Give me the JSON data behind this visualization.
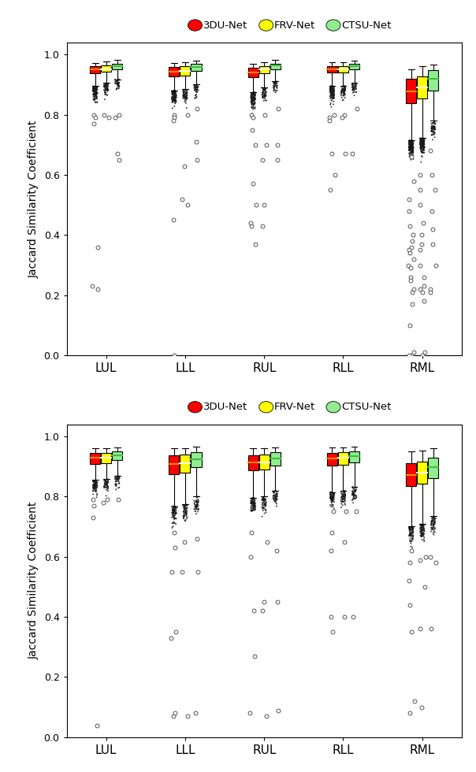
{
  "ylabel": "Jaccard Similarity Coefficient",
  "categories": [
    "LUL",
    "LLL",
    "RUL",
    "RLL",
    "RML"
  ],
  "legend_labels": [
    "3DU-Net",
    "FRV-Net",
    "CTSU-Net"
  ],
  "legend_colors": [
    "#FF0000",
    "#FFFF00",
    "#90EE90"
  ],
  "median_color": "#FF6600",
  "ylim": [
    0.0,
    1.04
  ],
  "yticks": [
    0.0,
    0.2,
    0.4,
    0.6,
    0.8,
    1.0
  ],
  "box_width": 0.13,
  "panel1": {
    "LUL": {
      "3DU-Net": {
        "q1": 0.938,
        "median": 0.95,
        "q3": 0.96,
        "whislo": 0.895,
        "whishi": 0.972,
        "cluster_mean": 0.883,
        "cluster_std": 0.018,
        "cluster_n": 120,
        "fliers": [
          0.8,
          0.79,
          0.77,
          0.36,
          0.23,
          0.22
        ]
      },
      "FRV-Net": {
        "q1": 0.942,
        "median": 0.952,
        "q3": 0.963,
        "whislo": 0.905,
        "whishi": 0.976,
        "cluster_mean": 0.892,
        "cluster_std": 0.014,
        "cluster_n": 60,
        "fliers": [
          0.8,
          0.79
        ]
      },
      "CTSU-Net": {
        "q1": 0.952,
        "median": 0.961,
        "q3": 0.969,
        "whislo": 0.918,
        "whishi": 0.981,
        "cluster_mean": 0.904,
        "cluster_std": 0.012,
        "cluster_n": 40,
        "fliers": [
          0.8,
          0.79,
          0.67,
          0.65
        ]
      }
    },
    "LLL": {
      "3DU-Net": {
        "q1": 0.928,
        "median": 0.943,
        "q3": 0.958,
        "whislo": 0.88,
        "whishi": 0.972,
        "cluster_mean": 0.868,
        "cluster_std": 0.018,
        "cluster_n": 120,
        "fliers": [
          0.8,
          0.79,
          0.78,
          0.45,
          0.0
        ]
      },
      "FRV-Net": {
        "q1": 0.93,
        "median": 0.946,
        "q3": 0.96,
        "whislo": 0.885,
        "whishi": 0.974,
        "cluster_mean": 0.873,
        "cluster_std": 0.016,
        "cluster_n": 60,
        "fliers": [
          0.8,
          0.63,
          0.52,
          0.5
        ]
      },
      "CTSU-Net": {
        "q1": 0.946,
        "median": 0.958,
        "q3": 0.968,
        "whislo": 0.9,
        "whishi": 0.979,
        "cluster_mean": 0.887,
        "cluster_std": 0.014,
        "cluster_n": 40,
        "fliers": [
          0.82,
          0.71,
          0.65
        ]
      }
    },
    "RUL": {
      "3DU-Net": {
        "q1": 0.925,
        "median": 0.94,
        "q3": 0.955,
        "whislo": 0.875,
        "whishi": 0.97,
        "cluster_mean": 0.862,
        "cluster_std": 0.02,
        "cluster_n": 120,
        "fliers": [
          0.8,
          0.79,
          0.75,
          0.7,
          0.57,
          0.5,
          0.44,
          0.43,
          0.37
        ]
      },
      "FRV-Net": {
        "q1": 0.938,
        "median": 0.95,
        "q3": 0.962,
        "whislo": 0.89,
        "whishi": 0.975,
        "cluster_mean": 0.876,
        "cluster_std": 0.016,
        "cluster_n": 60,
        "fliers": [
          0.8,
          0.7,
          0.65,
          0.5,
          0.43
        ]
      },
      "CTSU-Net": {
        "q1": 0.952,
        "median": 0.963,
        "q3": 0.97,
        "whislo": 0.912,
        "whishi": 0.981,
        "cluster_mean": 0.899,
        "cluster_std": 0.013,
        "cluster_n": 40,
        "fliers": [
          0.82,
          0.7,
          0.65
        ]
      }
    },
    "RLL": {
      "3DU-Net": {
        "q1": 0.94,
        "median": 0.951,
        "q3": 0.961,
        "whislo": 0.895,
        "whishi": 0.975,
        "cluster_mean": 0.882,
        "cluster_std": 0.017,
        "cluster_n": 120,
        "fliers": [
          0.8,
          0.79,
          0.78,
          0.67,
          0.6,
          0.55
        ]
      },
      "FRV-Net": {
        "q1": 0.94,
        "median": 0.952,
        "q3": 0.962,
        "whislo": 0.895,
        "whishi": 0.975,
        "cluster_mean": 0.883,
        "cluster_std": 0.016,
        "cluster_n": 60,
        "fliers": [
          0.8,
          0.79,
          0.67
        ]
      },
      "CTSU-Net": {
        "q1": 0.95,
        "median": 0.96,
        "q3": 0.968,
        "whislo": 0.906,
        "whishi": 0.979,
        "cluster_mean": 0.893,
        "cluster_std": 0.013,
        "cluster_n": 40,
        "fliers": [
          0.82,
          0.67
        ]
      }
    },
    "RML": {
      "3DU-Net": {
        "q1": 0.838,
        "median": 0.878,
        "q3": 0.92,
        "whislo": 0.715,
        "whishi": 0.95,
        "cluster_mean": 0.7,
        "cluster_std": 0.02,
        "cluster_n": 180,
        "fliers": [
          0.66,
          0.58,
          0.52,
          0.48,
          0.43,
          0.4,
          0.38,
          0.36,
          0.35,
          0.34,
          0.32,
          0.3,
          0.29,
          0.26,
          0.25,
          0.22,
          0.21,
          0.17,
          0.1,
          0.01,
          0.0,
          0.0
        ]
      },
      "FRV-Net": {
        "q1": 0.855,
        "median": 0.89,
        "q3": 0.927,
        "whislo": 0.722,
        "whishi": 0.96,
        "cluster_mean": 0.708,
        "cluster_std": 0.018,
        "cluster_n": 160,
        "fliers": [
          0.6,
          0.55,
          0.5,
          0.44,
          0.4,
          0.37,
          0.35,
          0.3,
          0.26,
          0.23,
          0.22,
          0.21,
          0.18,
          0.01,
          0.0
        ]
      },
      "CTSU-Net": {
        "q1": 0.88,
        "median": 0.92,
        "q3": 0.948,
        "whislo": 0.78,
        "whishi": 0.966,
        "cluster_mean": 0.755,
        "cluster_std": 0.016,
        "cluster_n": 60,
        "fliers": [
          0.68,
          0.6,
          0.55,
          0.48,
          0.42,
          0.37,
          0.3,
          0.22,
          0.21
        ]
      }
    }
  },
  "panel2": {
    "LUL": {
      "3DU-Net": {
        "q1": 0.908,
        "median": 0.928,
        "q3": 0.944,
        "whislo": 0.855,
        "whishi": 0.96,
        "cluster_mean": 0.84,
        "cluster_std": 0.015,
        "cluster_n": 80,
        "fliers": [
          0.79,
          0.77,
          0.73,
          0.04
        ]
      },
      "FRV-Net": {
        "q1": 0.911,
        "median": 0.93,
        "q3": 0.945,
        "whislo": 0.858,
        "whishi": 0.961,
        "cluster_mean": 0.843,
        "cluster_std": 0.014,
        "cluster_n": 50,
        "fliers": [
          0.79,
          0.78
        ]
      },
      "CTSU-Net": {
        "q1": 0.92,
        "median": 0.937,
        "q3": 0.95,
        "whislo": 0.868,
        "whishi": 0.963,
        "cluster_mean": 0.853,
        "cluster_std": 0.012,
        "cluster_n": 40,
        "fliers": [
          0.79
        ]
      }
    },
    "LLL": {
      "3DU-Net": {
        "q1": 0.875,
        "median": 0.908,
        "q3": 0.938,
        "whislo": 0.768,
        "whishi": 0.96,
        "cluster_mean": 0.75,
        "cluster_std": 0.02,
        "cluster_n": 80,
        "fliers": [
          0.68,
          0.63,
          0.55,
          0.35,
          0.33,
          0.07,
          0.08
        ]
      },
      "FRV-Net": {
        "q1": 0.88,
        "median": 0.91,
        "q3": 0.94,
        "whislo": 0.775,
        "whishi": 0.961,
        "cluster_mean": 0.755,
        "cluster_std": 0.018,
        "cluster_n": 60,
        "fliers": [
          0.65,
          0.55,
          0.07
        ]
      },
      "CTSU-Net": {
        "q1": 0.898,
        "median": 0.923,
        "q3": 0.947,
        "whislo": 0.8,
        "whishi": 0.965,
        "cluster_mean": 0.777,
        "cluster_std": 0.016,
        "cluster_n": 50,
        "fliers": [
          0.66,
          0.55,
          0.08
        ]
      }
    },
    "RUL": {
      "3DU-Net": {
        "q1": 0.888,
        "median": 0.913,
        "q3": 0.938,
        "whislo": 0.795,
        "whishi": 0.96,
        "cluster_mean": 0.778,
        "cluster_std": 0.018,
        "cluster_n": 80,
        "fliers": [
          0.68,
          0.6,
          0.42,
          0.27,
          0.08
        ]
      },
      "FRV-Net": {
        "q1": 0.89,
        "median": 0.914,
        "q3": 0.939,
        "whislo": 0.8,
        "whishi": 0.961,
        "cluster_mean": 0.78,
        "cluster_std": 0.017,
        "cluster_n": 60,
        "fliers": [
          0.65,
          0.45,
          0.42,
          0.07
        ]
      },
      "CTSU-Net": {
        "q1": 0.903,
        "median": 0.927,
        "q3": 0.947,
        "whislo": 0.82,
        "whishi": 0.963,
        "cluster_mean": 0.798,
        "cluster_std": 0.015,
        "cluster_n": 50,
        "fliers": [
          0.62,
          0.45,
          0.09
        ]
      }
    },
    "RLL": {
      "3DU-Net": {
        "q1": 0.903,
        "median": 0.926,
        "q3": 0.946,
        "whislo": 0.815,
        "whishi": 0.962,
        "cluster_mean": 0.798,
        "cluster_std": 0.017,
        "cluster_n": 80,
        "fliers": [
          0.75,
          0.68,
          0.62,
          0.4,
          0.35
        ]
      },
      "FRV-Net": {
        "q1": 0.905,
        "median": 0.928,
        "q3": 0.948,
        "whislo": 0.82,
        "whishi": 0.963,
        "cluster_mean": 0.803,
        "cluster_std": 0.016,
        "cluster_n": 60,
        "fliers": [
          0.75,
          0.65,
          0.4
        ]
      },
      "CTSU-Net": {
        "q1": 0.913,
        "median": 0.933,
        "q3": 0.951,
        "whislo": 0.832,
        "whishi": 0.965,
        "cluster_mean": 0.812,
        "cluster_std": 0.014,
        "cluster_n": 50,
        "fliers": [
          0.75,
          0.4
        ]
      }
    },
    "RML": {
      "3DU-Net": {
        "q1": 0.835,
        "median": 0.872,
        "q3": 0.912,
        "whislo": 0.7,
        "whishi": 0.95,
        "cluster_mean": 0.685,
        "cluster_std": 0.02,
        "cluster_n": 80,
        "fliers": [
          0.62,
          0.58,
          0.52,
          0.44,
          0.35,
          0.12,
          0.08
        ]
      },
      "FRV-Net": {
        "q1": 0.842,
        "median": 0.878,
        "q3": 0.916,
        "whislo": 0.708,
        "whishi": 0.952,
        "cluster_mean": 0.692,
        "cluster_std": 0.019,
        "cluster_n": 70,
        "fliers": [
          0.6,
          0.59,
          0.5,
          0.36,
          0.1
        ]
      },
      "CTSU-Net": {
        "q1": 0.862,
        "median": 0.898,
        "q3": 0.928,
        "whislo": 0.736,
        "whishi": 0.96,
        "cluster_mean": 0.714,
        "cluster_std": 0.017,
        "cluster_n": 60,
        "fliers": [
          0.6,
          0.58,
          0.36
        ]
      }
    }
  }
}
